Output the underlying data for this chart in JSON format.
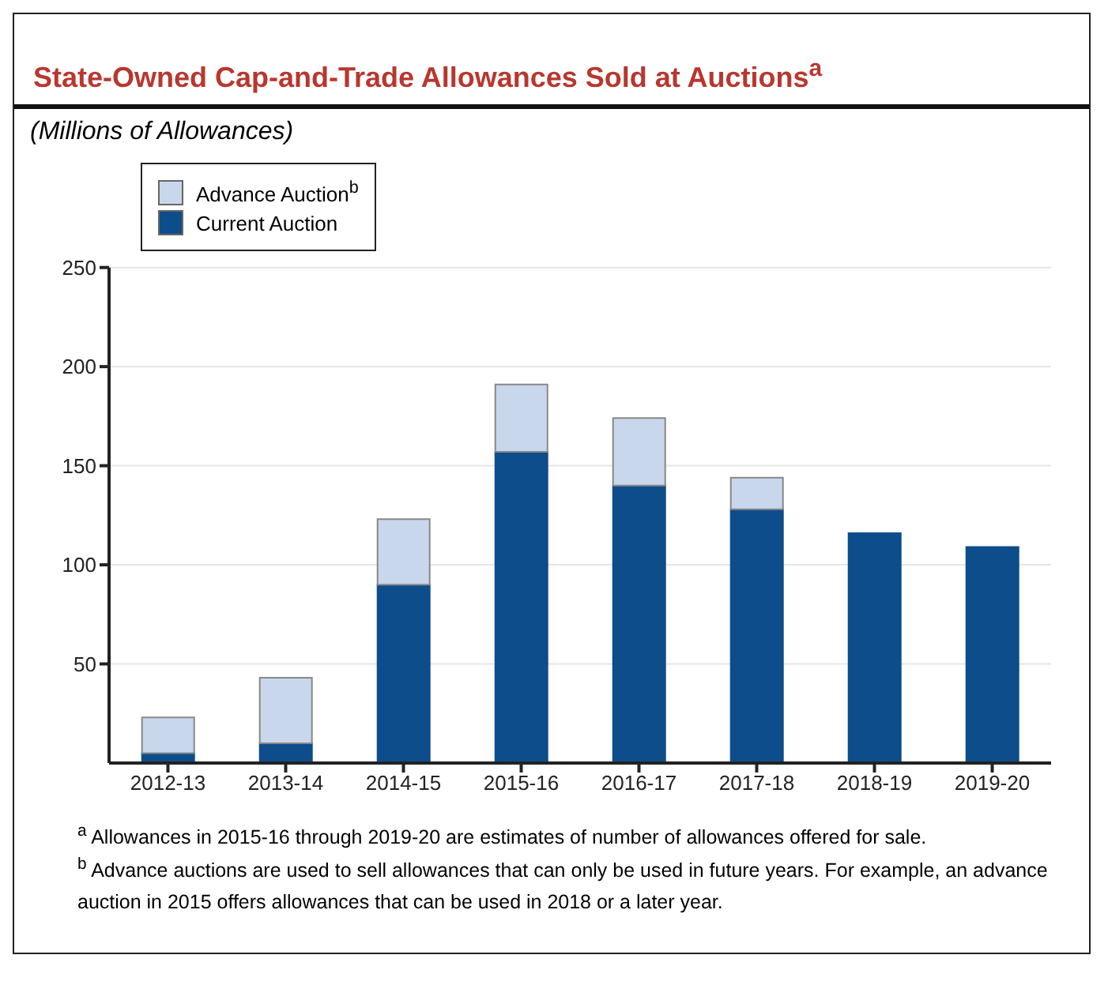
{
  "chart_data": {
    "type": "bar",
    "title": "State-Owned Cap-and-Trade Allowances Sold at Auctions$^{a}$",
    "subtitle": "(Millions of Allowances)",
    "categories": [
      "2012-13",
      "2013-14",
      "2014-15",
      "2015-16",
      "2016-17",
      "2017-18",
      "2018-19",
      "2019-20"
    ],
    "stacked": true,
    "series": [
      {
        "name": "Current Auction",
        "color": "#0e4d8c",
        "values": [
          5,
          10,
          90,
          157,
          140,
          128,
          116,
          109
        ]
      },
      {
        "name": "Advance Auction$^{b}$",
        "color": "#c9d7ec",
        "values": [
          18,
          33,
          33,
          34,
          34,
          16,
          null,
          null
        ]
      }
    ],
    "ylim": [
      0,
      250
    ],
    "yticks": [
      50,
      100,
      150,
      200,
      250
    ],
    "grid": "y",
    "legend": "top left",
    "annotations": [
      "$^{a}$ Allowances in 2015-16 through 2019-20 are estimates of number of allowances offered for sale.",
      "$^{b}$ Advance auctions are used to sell allowances that can only be used in future years. For example, an advance auction in 2015 offers allowances that can be used in 2018 or a later year."
    ]
  }
}
